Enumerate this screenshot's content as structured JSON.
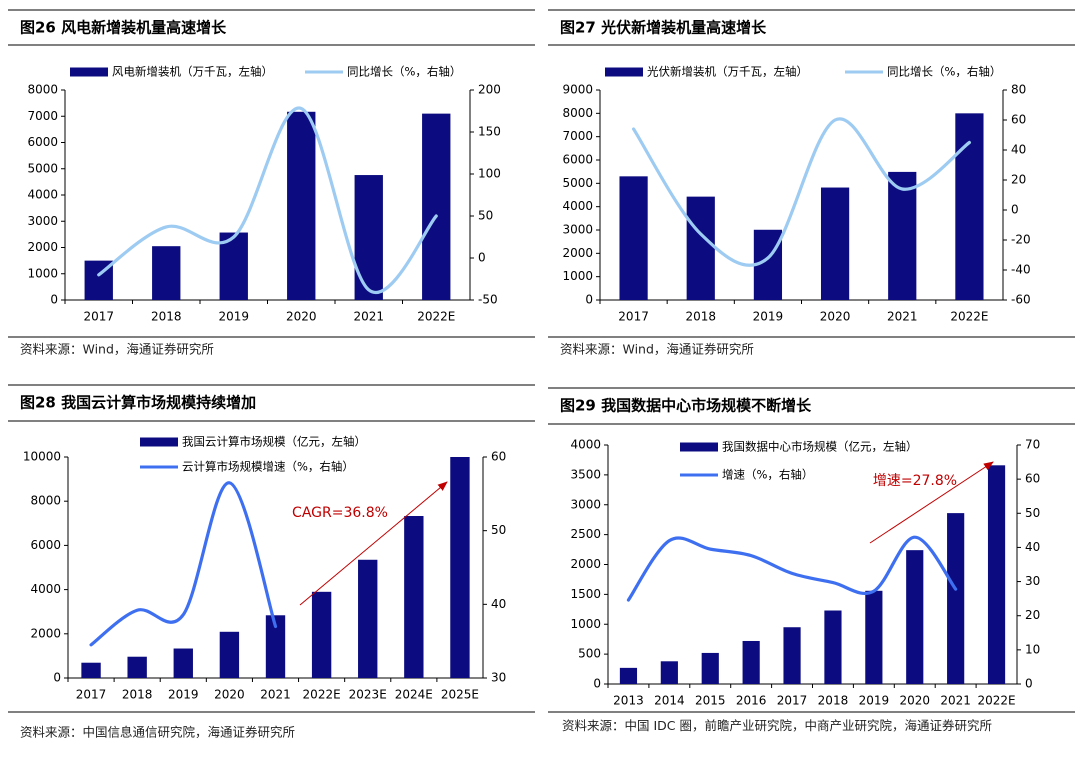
{
  "chart_data": [
    {
      "type": "bar_line",
      "title": "图26 风电新增装机量高速增长",
      "source": "资料来源：Wind，海通证券研究所",
      "categories": [
        "2017",
        "2018",
        "2019",
        "2020",
        "2021",
        "2022E"
      ],
      "series": [
        {
          "name": "风电新增装机（万千瓦，左轴）",
          "color": "#0c0c80",
          "values": [
            1500,
            2050,
            2570,
            7170,
            4760,
            7100
          ]
        },
        {
          "name": "同比增长（%，右轴）",
          "color": "#9dcbf2",
          "axis": "y2",
          "values": [
            -20,
            37,
            25,
            178,
            -38,
            50
          ]
        }
      ],
      "ylim": [
        0,
        8000
      ],
      "yticks": [
        0,
        1000,
        2000,
        3000,
        4000,
        5000,
        6000,
        7000,
        8000
      ],
      "y2lim": [
        -50,
        200
      ],
      "y2ticks": [
        -50,
        0,
        50,
        100,
        150,
        200
      ],
      "legend": "top"
    },
    {
      "type": "bar_line",
      "title": "图27 光伏新增装机量高速增长",
      "source": "资料来源：Wind，海通证券研究所",
      "categories": [
        "2017",
        "2018",
        "2019",
        "2020",
        "2021",
        "2022E"
      ],
      "series": [
        {
          "name": "光伏新增装机（万千瓦，左轴）",
          "color": "#0c0c80",
          "values": [
            5300,
            4430,
            3010,
            4820,
            5490,
            8000
          ]
        },
        {
          "name": "同比增长（%，右轴）",
          "color": "#9dcbf2",
          "axis": "y2",
          "values": [
            54,
            -16,
            -32,
            60,
            14,
            45
          ]
        }
      ],
      "ylim": [
        0,
        9000
      ],
      "yticks": [
        0,
        1000,
        2000,
        3000,
        4000,
        5000,
        6000,
        7000,
        8000,
        9000
      ],
      "y2lim": [
        -60,
        80
      ],
      "y2ticks": [
        -60,
        -40,
        -20,
        0,
        20,
        40,
        60,
        80
      ],
      "legend": "top"
    },
    {
      "type": "bar_line",
      "title": "图28 我国云计算市场规模持续增加",
      "source": "资料来源：中国信息通信研究院，海通证券研究所",
      "categories": [
        "2017",
        "2018",
        "2019",
        "2020",
        "2021",
        "2022E",
        "2023E",
        "2024E",
        "2025E"
      ],
      "series": [
        {
          "name": "我国云计算市场规模（亿元，左轴）",
          "color": "#0c0c80",
          "values": [
            692,
            963,
            1334,
            2091,
            2838,
            3900,
            5350,
            7330,
            10000
          ]
        },
        {
          "name": "云计算市场规模增速（%，右轴）",
          "color": "#3d6ff0",
          "axis": "y2",
          "values": [
            34.5,
            39.2,
            38.6,
            56.5,
            37,
            null,
            null,
            null,
            null
          ]
        }
      ],
      "ylim": [
        0,
        10000
      ],
      "yticks": [
        0,
        2000,
        4000,
        6000,
        8000,
        10000
      ],
      "y2lim": [
        30,
        60
      ],
      "y2ticks": [
        30,
        40,
        50,
        60
      ],
      "legend": "top-left",
      "annotation": "CAGR=36.8%",
      "annotation_color": "#c00000"
    },
    {
      "type": "bar_line",
      "title": "图29 我国数据中心市场规模不断增长",
      "source": "资料来源：中国 IDC 圈，前瞻产业研究院，中商产业研究院，海通证券研究所",
      "categories": [
        "2013",
        "2014",
        "2015",
        "2016",
        "2017",
        "2018",
        "2019",
        "2020",
        "2021",
        "2022E"
      ],
      "series": [
        {
          "name": "我国数据中心市场规模（亿元，左轴）",
          "color": "#0c0c80",
          "values": [
            270,
            380,
            520,
            720,
            950,
            1230,
            1560,
            2240,
            2860,
            3660
          ]
        },
        {
          "name": "增速（%，右轴）",
          "color": "#3d6ff0",
          "axis": "y2",
          "values": [
            24.6,
            42,
            39.5,
            37.6,
            32.4,
            29.7,
            27.2,
            43,
            27.8,
            null
          ]
        }
      ],
      "ylim": [
        0,
        4000
      ],
      "yticks": [
        0,
        500,
        1000,
        1500,
        2000,
        2500,
        3000,
        3500,
        4000
      ],
      "y2lim": [
        0,
        70
      ],
      "y2ticks": [
        0,
        10,
        20,
        30,
        40,
        50,
        60,
        70
      ],
      "legend": "top-left",
      "annotation": "增速=27.8%",
      "annotation_color": "#c00000"
    }
  ]
}
